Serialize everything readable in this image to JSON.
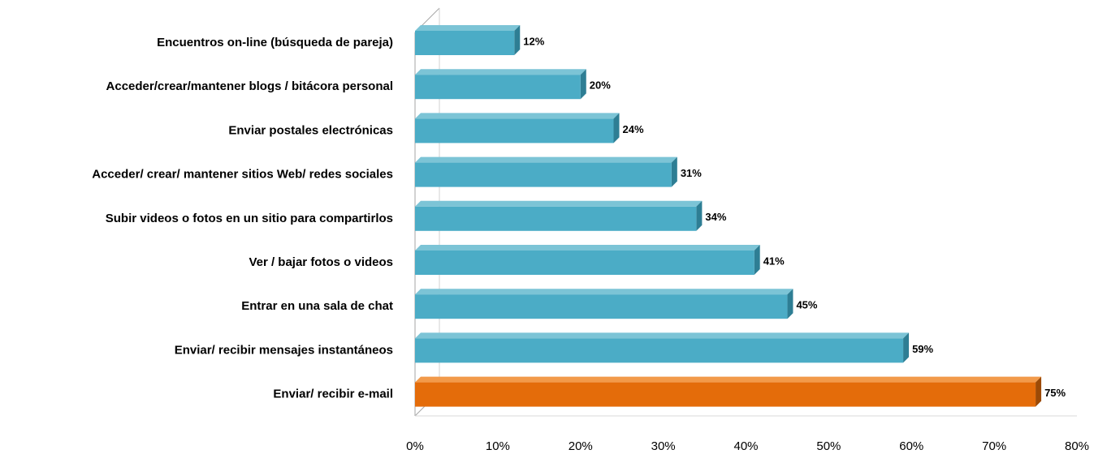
{
  "chart_data": {
    "type": "bar",
    "orientation": "horizontal",
    "style": "3d",
    "categories": [
      "Encuentros on-line (búsqueda de pareja)",
      "Acceder/crear/mantener blogs / bitácora personal",
      "Enviar postales electrónicas",
      "Acceder/ crear/ mantener sitios Web/ redes sociales",
      "Subir videos o fotos en un sitio para compartirlos",
      "Ver /  bajar fotos o videos",
      "Entrar en una sala de chat",
      "Enviar/ recibir mensajes instantáneos",
      "Enviar/ recibir e-mail"
    ],
    "values": [
      12,
      20,
      24,
      31,
      34,
      41,
      45,
      59,
      75
    ],
    "value_labels": [
      "12%",
      "20%",
      "24%",
      "31%",
      "34%",
      "41%",
      "45%",
      "59%",
      "75%"
    ],
    "highlight_index": 8,
    "xlim": [
      0,
      80
    ],
    "xticks": [
      "0%",
      "10%",
      "20%",
      "30%",
      "40%",
      "50%",
      "60%",
      "70%",
      "80%"
    ],
    "grid": false,
    "legend": "none",
    "colors": {
      "bar": "#4bacc6",
      "bar_top": "#7cc4d6",
      "bar_side": "#2e7e94",
      "highlight": "#e46c0a",
      "highlight_top": "#f29a4a",
      "highlight_side": "#9c4a06",
      "wall": "#a6a6a6"
    }
  }
}
